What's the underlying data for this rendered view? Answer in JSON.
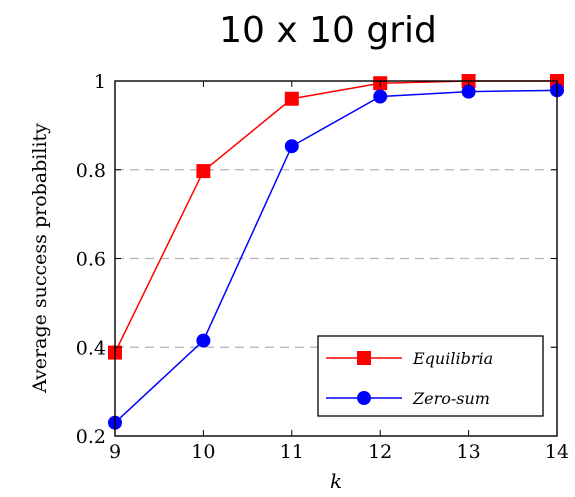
{
  "chart_data": {
    "type": "line",
    "title": "10 x 10 grid",
    "xlabel": "k",
    "ylabel": "Average success probability",
    "x": [
      9,
      10,
      11,
      12,
      13,
      14
    ],
    "xlim": [
      9,
      14
    ],
    "ylim": [
      0.2,
      1
    ],
    "xticks": [
      "9",
      "10",
      "11",
      "12",
      "13",
      "14"
    ],
    "yticks": [
      "0.2",
      "0.4",
      "0.6",
      "0.8",
      "1"
    ],
    "grid": "horizontal dashed",
    "legend_position": "bottom-right",
    "series": [
      {
        "name": "Equilibria",
        "color": "#ff0000",
        "marker": "square",
        "values": [
          0.388,
          0.797,
          0.96,
          0.995,
          1.0,
          1.0
        ]
      },
      {
        "name": "Zero-sum",
        "color": "#0000ff",
        "marker": "circle",
        "values": [
          0.23,
          0.415,
          0.853,
          0.965,
          0.976,
          0.979
        ]
      }
    ]
  }
}
